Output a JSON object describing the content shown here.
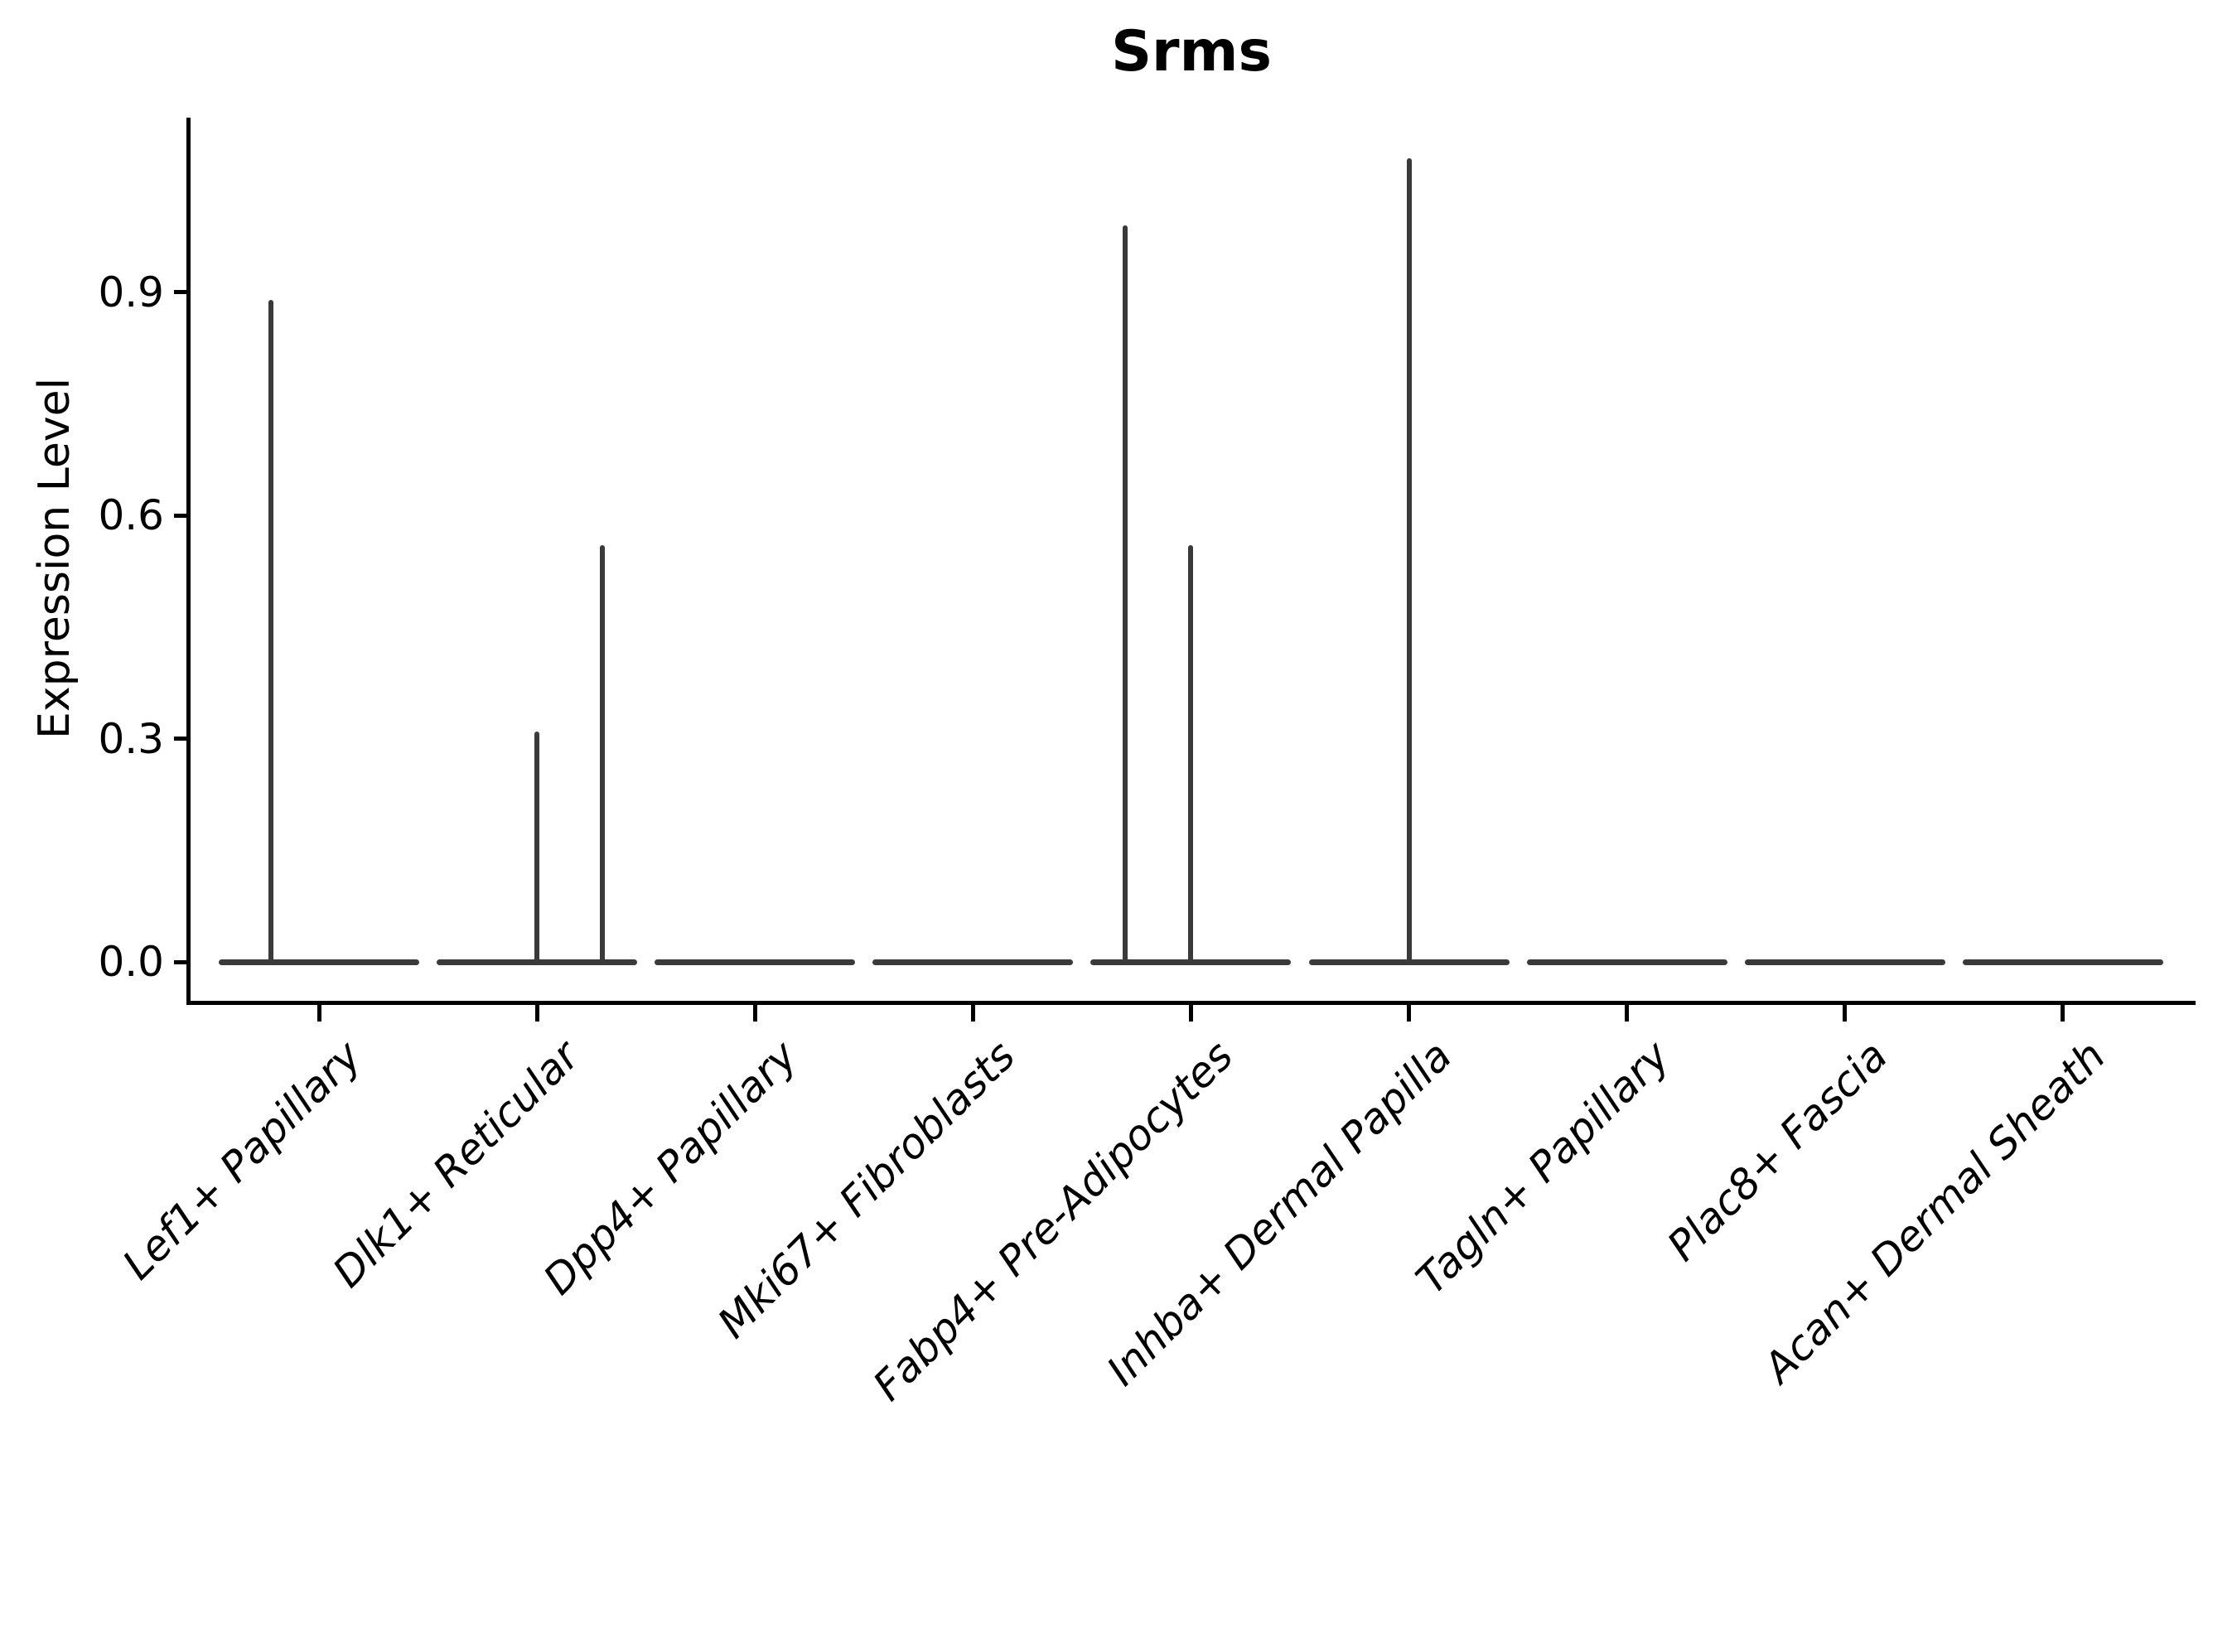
{
  "chart_data": {
    "type": "violin",
    "title": "Srms",
    "xlabel": "",
    "ylabel": "Expression Level",
    "ylim": [
      -0.06,
      1.15
    ],
    "grid": false,
    "legend": "none",
    "yticks": [
      {
        "label": "0.0",
        "value": 0.0
      },
      {
        "label": "0.3",
        "value": 0.3
      },
      {
        "label": "0.6",
        "value": 0.6
      },
      {
        "label": "0.9",
        "value": 0.9
      }
    ],
    "categories": [
      "Lef1+ Papillary",
      "Dlk1+ Reticular",
      "Dpp4+ Papillary",
      "Mki67+ Fibroblasts",
      "Fabp4+ Pre-Adipocytes",
      "Inhba+ Dermal Papilla",
      "Tagln+ Papillary",
      "Plac8+ Fascia",
      "Acan+ Dermal Sheath"
    ],
    "groups": [
      {
        "label": "Lef1+ Papillary",
        "baseline_value": 0.0,
        "spikes": [
          {
            "dx": -0.22,
            "max": 0.89
          }
        ]
      },
      {
        "label": "Dlk1+ Reticular",
        "baseline_value": 0.0,
        "spikes": [
          {
            "dx": 0.0,
            "max": 0.31
          },
          {
            "dx": 0.3,
            "max": 0.56
          }
        ]
      },
      {
        "label": "Dpp4+ Papillary",
        "baseline_value": 0.0,
        "spikes": []
      },
      {
        "label": "Mki67+ Fibroblasts",
        "baseline_value": 0.0,
        "spikes": []
      },
      {
        "label": "Fabp4+ Pre-Adipocytes",
        "baseline_value": 0.0,
        "spikes": [
          {
            "dx": -0.3,
            "max": 0.99
          },
          {
            "dx": 0.0,
            "max": 0.56
          }
        ]
      },
      {
        "label": "Inhba+ Dermal Papilla",
        "baseline_value": 0.0,
        "spikes": [
          {
            "dx": 0.0,
            "max": 1.08
          }
        ]
      },
      {
        "label": "Tagln+ Papillary",
        "baseline_value": 0.0,
        "spikes": []
      },
      {
        "label": "Plac8+ Fascia",
        "baseline_value": 0.0,
        "spikes": []
      },
      {
        "label": "Acan+ Dermal Sheath",
        "baseline_value": 0.0,
        "spikes": []
      }
    ],
    "colors": {
      "violin_stroke": "#3a3a3a",
      "axis": "#000000",
      "text": "#000000",
      "background": "#ffffff"
    }
  }
}
